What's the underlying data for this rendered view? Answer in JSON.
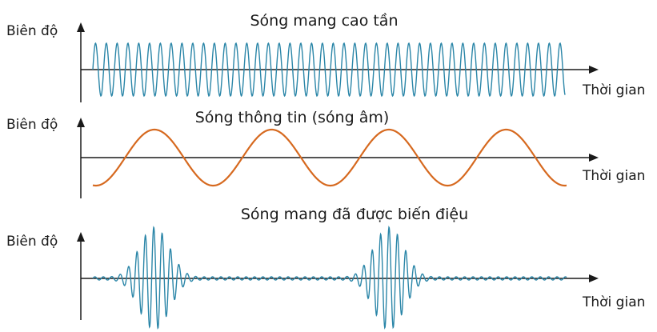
{
  "colors": {
    "carrier": "#2b86a8",
    "signal": "#d6691f",
    "modulated": "#2b86a8",
    "axis": "#1a1a1a"
  },
  "panels": [
    {
      "title": "Sóng mang cao tần",
      "ylabel": "Biên độ",
      "xlabel": "Thời gian",
      "wave": "carrier"
    },
    {
      "title": "Sóng thông tin (sóng âm)",
      "ylabel": "Biên độ",
      "xlabel": "Thời gian",
      "wave": "signal"
    },
    {
      "title": "Sóng mang đã được biến điệu",
      "ylabel": "Biên độ",
      "xlabel": "Thời gian",
      "wave": "modulated"
    }
  ]
}
